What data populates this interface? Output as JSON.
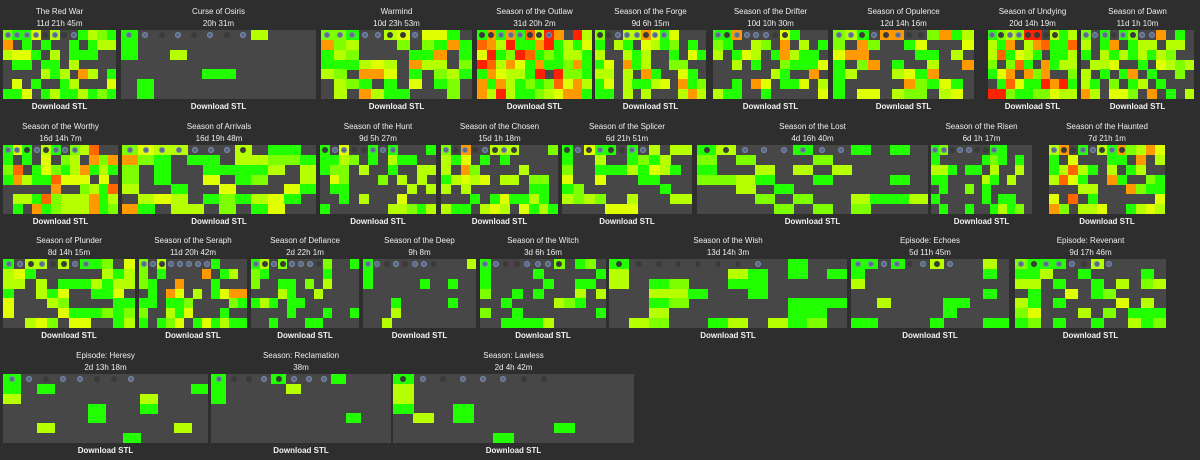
{
  "cards": [
    {
      "title": "The Red War",
      "time": "11d 21h 45m"
    },
    {
      "title": "Curse of Osiris",
      "time": "20h 31m"
    },
    {
      "title": "Warmind",
      "time": "10d 23h 53m"
    },
    {
      "title": "Season of the Outlaw",
      "time": "31d 20h 2m"
    },
    {
      "title": "Season of the Forge",
      "time": "9d 6h 15m"
    },
    {
      "title": "Season of the Drifter",
      "time": "10d 10h 30m"
    },
    {
      "title": "Season of Opulence",
      "time": "12d 14h 16m"
    },
    {
      "title": "Season of Undying",
      "time": "20d 14h 19m"
    },
    {
      "title": "Season of Dawn",
      "time": "11d 1h 10m"
    },
    {
      "title": "Season of the Worthy",
      "time": "16d 14h 7m"
    },
    {
      "title": "Season of Arrivals",
      "time": "16d 19h 48m"
    },
    {
      "title": "Season of the Hunt",
      "time": "9d 5h 27m"
    },
    {
      "title": "Season of the Chosen",
      "time": "15d 1h 18m"
    },
    {
      "title": "Season of the Splicer",
      "time": "6d 21h 51m"
    },
    {
      "title": "Season of the Lost",
      "time": "4d 16h 40m"
    },
    {
      "title": "Season of the Risen",
      "time": "6d 1h 17m"
    },
    {
      "title": "Season of the Haunted",
      "time": "7d 21h 1m"
    },
    {
      "title": "Season of Plunder",
      "time": "8d 14h 15m"
    },
    {
      "title": "Season of the Seraph",
      "time": "11d 20h 42m"
    },
    {
      "title": "Season of Defiance",
      "time": "2d 22h 1m"
    },
    {
      "title": "Season of the Deep",
      "time": "9h 8m"
    },
    {
      "title": "Season of the Witch",
      "time": "3d 6h 16m"
    },
    {
      "title": "Season of the Wish",
      "time": "13d 14h 3m"
    },
    {
      "title": "Episode: Echoes",
      "time": "5d 11h 45m"
    },
    {
      "title": "Episode: Revenant",
      "time": "9d 17h 46m"
    },
    {
      "title": "Episode: Heresy",
      "time": "2d 13h 18m"
    },
    {
      "title": "Season: Reclamation",
      "time": "38m"
    },
    {
      "title": "Season: Lawless",
      "time": "2d 4h 42m"
    }
  ],
  "download_label": "Download STL",
  "colors": {
    "background": "#2e2e2e",
    "empty_cell": "#474747",
    "low": "#22ff00",
    "mid": "#b5ff00",
    "high": "#ff9900",
    "max": "#ff2200"
  }
}
